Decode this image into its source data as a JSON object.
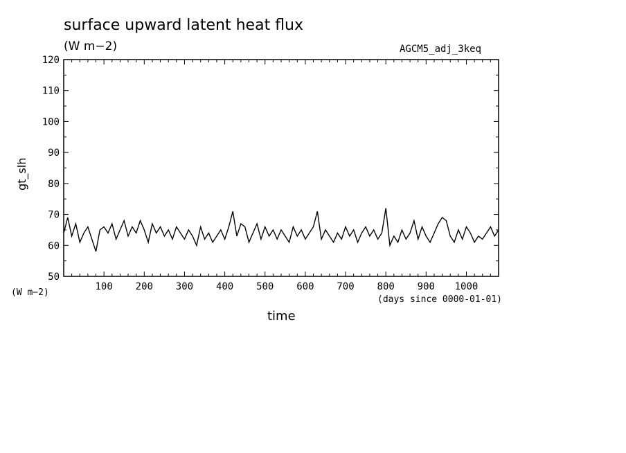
{
  "chart_data": {
    "type": "line",
    "title": "surface upward latent heat flux",
    "subtitle": "(W m−2)",
    "run_label": "AGCM5_adj_3keq",
    "xlabel": "time",
    "x_unit_note": "(days since 0000-01-01)",
    "ylabel": "gt_slh",
    "y_unit_note": "(W m−2)",
    "xlim": [
      0,
      1080
    ],
    "ylim": [
      50,
      120
    ],
    "x_ticks": [
      100,
      200,
      300,
      400,
      500,
      600,
      700,
      800,
      900,
      1000
    ],
    "y_ticks": [
      50,
      60,
      70,
      80,
      90,
      100,
      110,
      120
    ],
    "grid": false,
    "series": [
      {
        "color": "#000000",
        "x": [
          0,
          10,
          20,
          30,
          40,
          50,
          60,
          70,
          80,
          90,
          100,
          110,
          120,
          130,
          140,
          150,
          160,
          170,
          180,
          190,
          200,
          210,
          220,
          230,
          240,
          250,
          260,
          270,
          280,
          290,
          300,
          310,
          320,
          330,
          340,
          350,
          360,
          370,
          380,
          390,
          400,
          410,
          420,
          430,
          440,
          450,
          460,
          470,
          480,
          490,
          500,
          510,
          520,
          530,
          540,
          550,
          560,
          570,
          580,
          590,
          600,
          610,
          620,
          630,
          640,
          650,
          660,
          670,
          680,
          690,
          700,
          710,
          720,
          730,
          740,
          750,
          760,
          770,
          780,
          790,
          800,
          810,
          820,
          830,
          840,
          850,
          860,
          870,
          880,
          890,
          900,
          910,
          920,
          930,
          940,
          950,
          960,
          970,
          980,
          990,
          1000,
          1010,
          1020,
          1030,
          1040,
          1050,
          1060,
          1070,
          1080
        ],
        "y": [
          64,
          69,
          63,
          67,
          61,
          64,
          66,
          62,
          58,
          65,
          66,
          64,
          67,
          62,
          65,
          68,
          63,
          66,
          64,
          68,
          65,
          61,
          67,
          64,
          66,
          63,
          65,
          62,
          66,
          64,
          62,
          65,
          63,
          60,
          66,
          62,
          64,
          61,
          63,
          65,
          62,
          66,
          71,
          63,
          67,
          66,
          61,
          64,
          67,
          62,
          66,
          63,
          65,
          62,
          65,
          63,
          61,
          66,
          63,
          65,
          62,
          64,
          66,
          71,
          62,
          65,
          63,
          61,
          64,
          62,
          66,
          63,
          65,
          61,
          64,
          66,
          63,
          65,
          62,
          64,
          72,
          60,
          63,
          61,
          65,
          62,
          64,
          68,
          62,
          66,
          63,
          61,
          64,
          67,
          69,
          68,
          63,
          61,
          65,
          62,
          66,
          64,
          61,
          63,
          62,
          64,
          66,
          63,
          65
        ]
      }
    ]
  }
}
